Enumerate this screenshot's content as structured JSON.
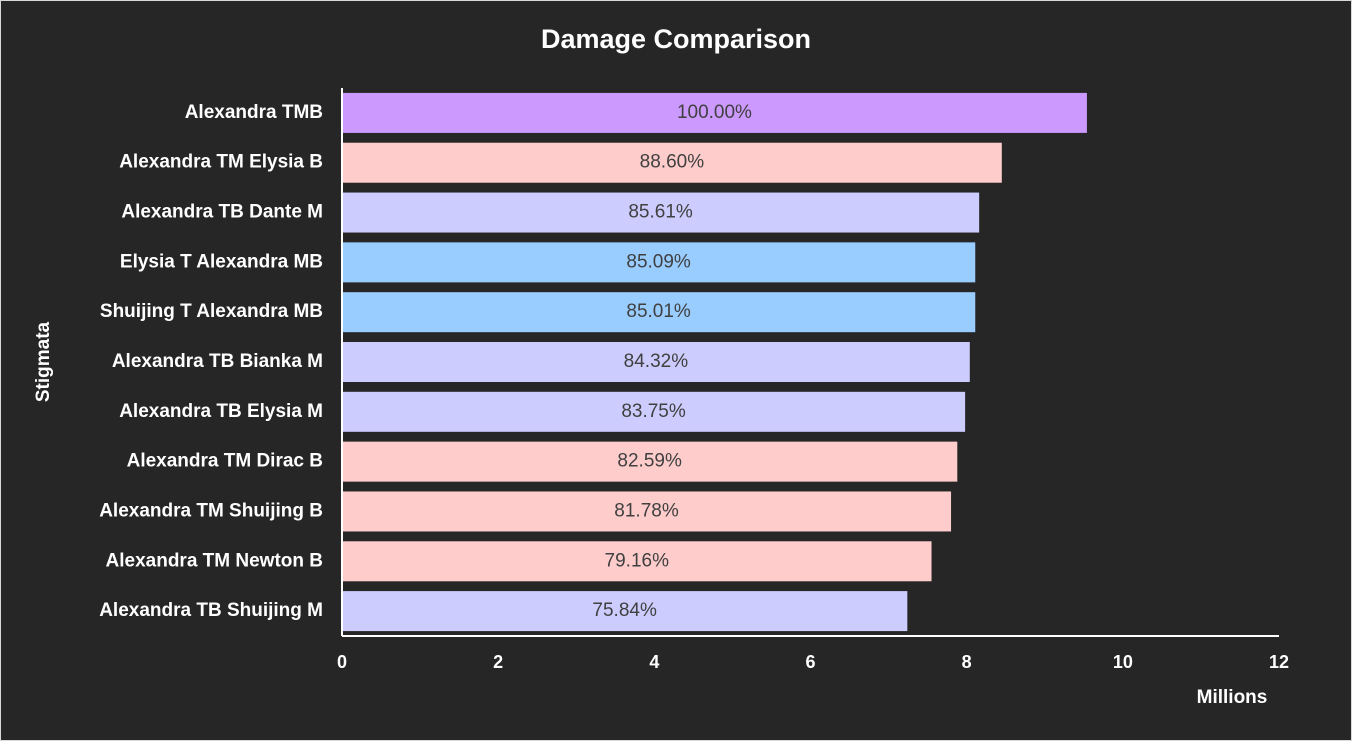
{
  "chart_data": {
    "type": "barh",
    "title": "Damage Comparison",
    "x_label": "Millions",
    "y_label": "Stigmata",
    "categories": [
      "Alexandra TMB",
      "Alexandra TM Elysia B",
      "Alexandra TB Dante M",
      "Elysia T Alexandra MB",
      "Shuijing T Alexandra MB",
      "Alexandra TB Bianka M",
      "Alexandra TB Elysia M",
      "Alexandra TM Dirac B",
      "Alexandra TM Shuijing B",
      "Alexandra TM Newton B",
      "Alexandra TB Shuijing M"
    ],
    "values": [
      9.54,
      8.45,
      8.16,
      8.11,
      8.11,
      8.04,
      7.98,
      7.88,
      7.8,
      7.55,
      7.24
    ],
    "bar_labels": [
      "100.00%",
      "88.60%",
      "85.61%",
      "85.09%",
      "85.01%",
      "84.32%",
      "83.75%",
      "82.59%",
      "81.78%",
      "79.16%",
      "75.84%"
    ],
    "colors": [
      "#cc99ff",
      "#ffcccc",
      "#ccccff",
      "#99ccff",
      "#99ccff",
      "#ccccff",
      "#ccccff",
      "#ffcccc",
      "#ffcccc",
      "#ffcccc",
      "#ccccff"
    ],
    "xlim": [
      0,
      12
    ],
    "xticks": [
      0,
      2,
      4,
      6,
      8,
      10,
      12
    ],
    "grid": false
  }
}
